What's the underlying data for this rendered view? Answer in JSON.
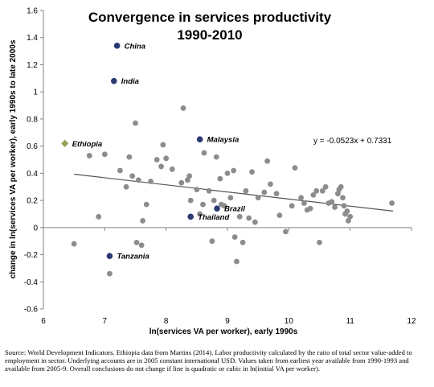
{
  "chart_data": {
    "type": "scatter",
    "title_lines": [
      "Convergence in services productivity",
      "1990-2010"
    ],
    "xlabel": "ln(services VA per worker), early 1990s",
    "ylabel": "change in ln(services VA per worker), early 1990s to late 2000s",
    "xlim": [
      6,
      12
    ],
    "ylim": [
      -0.6,
      1.6
    ],
    "x_ticks": [
      "6",
      "7",
      "8",
      "9",
      "10",
      "11",
      "12"
    ],
    "y_ticks": [
      "-0.6",
      "-0.4",
      "-0.2",
      "0",
      "0.2",
      "0.4",
      "0.6",
      "0.8",
      "1",
      "1.2",
      "1.4",
      "1.6"
    ],
    "grid": false,
    "trendline": {
      "slope": -0.0523,
      "intercept": 0.7331,
      "x_range": [
        6.5,
        11.7
      ],
      "equation_label": "y = -0.0523x + 0.7331"
    },
    "colors": {
      "default": "#8c8c8c",
      "highlight": "#2b3a73",
      "ethiopia": "#9aa05a"
    },
    "highlighted": [
      {
        "label": "China",
        "x": 7.2,
        "y": 1.34
      },
      {
        "label": "India",
        "x": 7.15,
        "y": 1.08
      },
      {
        "label": "Malaysia",
        "x": 8.55,
        "y": 0.65
      },
      {
        "label": "Ethiopia",
        "x": 6.35,
        "y": 0.62,
        "marker": "diamond"
      },
      {
        "label": "Brazil",
        "x": 8.83,
        "y": 0.14
      },
      {
        "label": "Thailand",
        "x": 8.4,
        "y": 0.08
      },
      {
        "label": "Tanzania",
        "x": 7.08,
        "y": -0.21
      }
    ],
    "points": [
      [
        6.5,
        -0.12
      ],
      [
        6.75,
        0.53
      ],
      [
        6.9,
        0.08
      ],
      [
        7.0,
        0.54
      ],
      [
        7.08,
        -0.34
      ],
      [
        7.25,
        0.42
      ],
      [
        7.35,
        0.3
      ],
      [
        7.4,
        0.52
      ],
      [
        7.45,
        0.38
      ],
      [
        7.5,
        0.77
      ],
      [
        7.52,
        -0.11
      ],
      [
        7.55,
        0.35
      ],
      [
        7.6,
        -0.13
      ],
      [
        7.62,
        0.05
      ],
      [
        7.68,
        0.17
      ],
      [
        7.75,
        0.34
      ],
      [
        7.85,
        0.5
      ],
      [
        7.92,
        0.45
      ],
      [
        7.95,
        0.61
      ],
      [
        8.0,
        0.51
      ],
      [
        8.1,
        0.43
      ],
      [
        8.25,
        0.33
      ],
      [
        8.28,
        0.88
      ],
      [
        8.35,
        0.35
      ],
      [
        8.38,
        0.38
      ],
      [
        8.4,
        0.2
      ],
      [
        8.5,
        0.28
      ],
      [
        8.55,
        0.1
      ],
      [
        8.6,
        0.17
      ],
      [
        8.62,
        0.55
      ],
      [
        8.7,
        0.27
      ],
      [
        8.75,
        -0.1
      ],
      [
        8.78,
        0.2
      ],
      [
        8.82,
        0.52
      ],
      [
        8.88,
        0.36
      ],
      [
        8.9,
        0.17
      ],
      [
        8.95,
        0.16
      ],
      [
        9.0,
        0.4
      ],
      [
        9.05,
        0.22
      ],
      [
        9.1,
        0.42
      ],
      [
        9.12,
        -0.07
      ],
      [
        9.15,
        -0.25
      ],
      [
        9.2,
        0.08
      ],
      [
        9.25,
        -0.11
      ],
      [
        9.3,
        0.27
      ],
      [
        9.35,
        0.07
      ],
      [
        9.4,
        0.41
      ],
      [
        9.45,
        0.04
      ],
      [
        9.5,
        0.22
      ],
      [
        9.6,
        0.26
      ],
      [
        9.65,
        0.49
      ],
      [
        9.7,
        0.32
      ],
      [
        9.8,
        0.25
      ],
      [
        9.85,
        0.09
      ],
      [
        9.95,
        -0.03
      ],
      [
        10.05,
        0.16
      ],
      [
        10.1,
        0.44
      ],
      [
        10.2,
        0.22
      ],
      [
        10.25,
        0.18
      ],
      [
        10.3,
        0.13
      ],
      [
        10.35,
        0.14
      ],
      [
        10.4,
        0.24
      ],
      [
        10.45,
        0.27
      ],
      [
        10.5,
        -0.11
      ],
      [
        10.55,
        0.27
      ],
      [
        10.6,
        0.3
      ],
      [
        10.65,
        0.18
      ],
      [
        10.7,
        0.19
      ],
      [
        10.75,
        0.15
      ],
      [
        10.8,
        0.25
      ],
      [
        10.82,
        0.28
      ],
      [
        10.85,
        0.3
      ],
      [
        10.88,
        0.22
      ],
      [
        10.9,
        0.16
      ],
      [
        10.92,
        0.1
      ],
      [
        10.95,
        0.12
      ],
      [
        10.97,
        0.05
      ],
      [
        11.0,
        0.08
      ],
      [
        11.68,
        0.18
      ]
    ]
  },
  "source_note": "Source: World Development Indicators. Ethiopia data from Martins (2014). Labor productivity calculated by the ratio of total sector value-added to employment in sector. Underlying accounts are in 2005 constant international USD. Values taken from earliest year available from 1990-1993 and available from 2005-9. Overall conclusions do not change if line is quadratic or cubic in ln(initial VA per worker)."
}
